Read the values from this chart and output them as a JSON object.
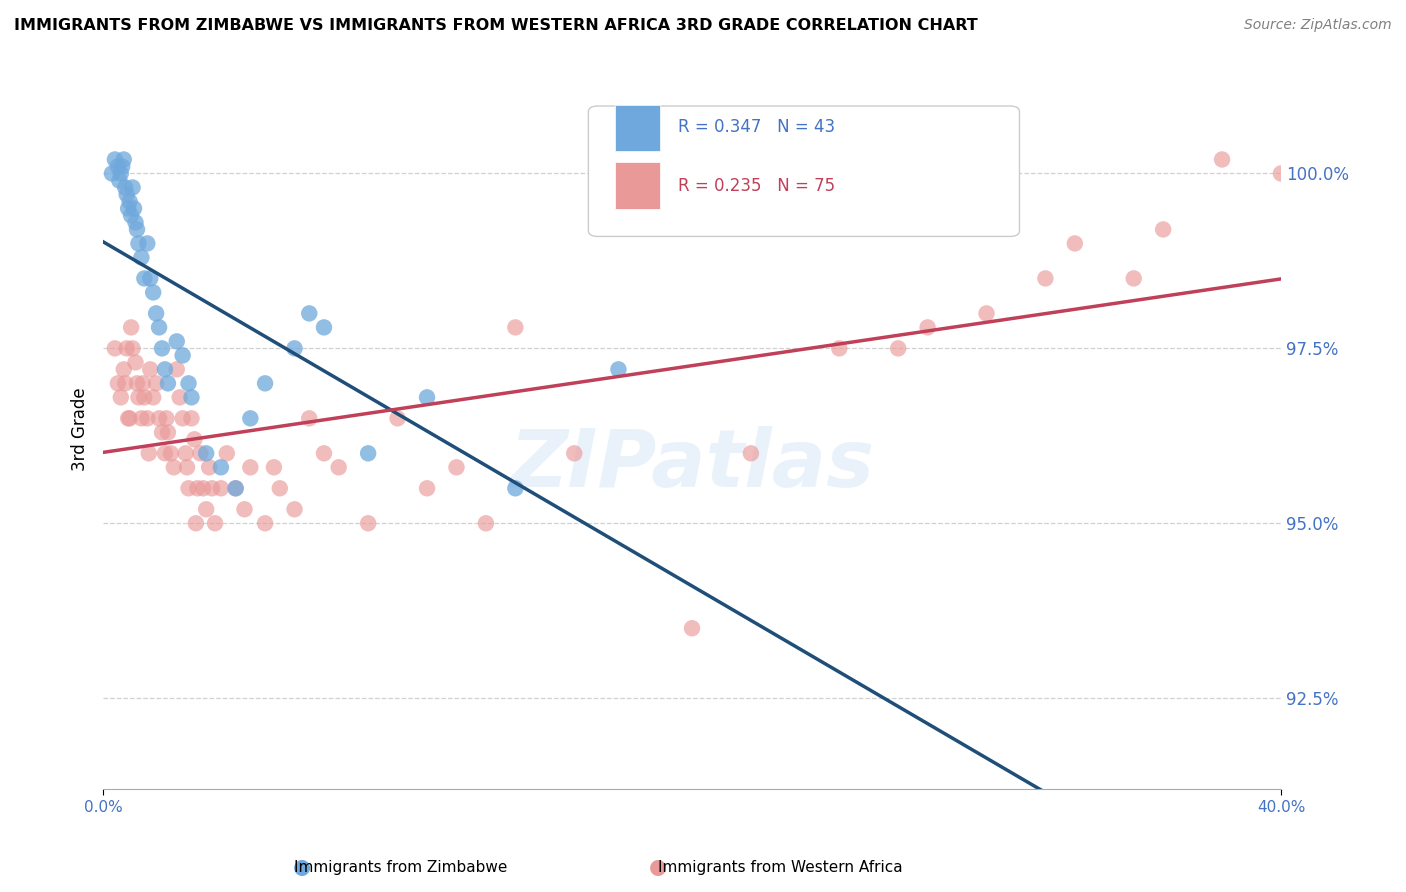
{
  "title": "IMMIGRANTS FROM ZIMBABWE VS IMMIGRANTS FROM WESTERN AFRICA 3RD GRADE CORRELATION CHART",
  "source": "Source: ZipAtlas.com",
  "ylabel": "3rd Grade",
  "xlim": [
    0.0,
    40.0
  ],
  "ylim": [
    91.2,
    101.5
  ],
  "yticks": [
    92.5,
    95.0,
    97.5,
    100.0
  ],
  "ytick_labels": [
    "92.5%",
    "95.0%",
    "97.5%",
    "100.0%"
  ],
  "legend_label_blue": "Immigrants from Zimbabwe",
  "legend_label_pink": "Immigrants from Western Africa",
  "blue_color": "#6fa8dc",
  "pink_color": "#ea9999",
  "blue_line_color": "#1f4e79",
  "pink_line_color": "#c0405a",
  "watermark": "ZIPatlas",
  "background_color": "#ffffff",
  "grid_color": "#cccccc",
  "blue_x": [
    0.3,
    0.4,
    0.5,
    0.55,
    0.6,
    0.65,
    0.7,
    0.75,
    0.8,
    0.85,
    0.9,
    0.95,
    1.0,
    1.05,
    1.1,
    1.15,
    1.2,
    1.3,
    1.4,
    1.5,
    1.6,
    1.7,
    1.8,
    1.9,
    2.0,
    2.1,
    2.2,
    2.5,
    2.7,
    2.9,
    3.0,
    3.5,
    4.0,
    4.5,
    5.0,
    5.5,
    6.5,
    7.0,
    7.5,
    9.0,
    11.0,
    14.0,
    17.5
  ],
  "blue_y": [
    100.0,
    100.2,
    100.1,
    99.9,
    100.0,
    100.1,
    100.2,
    99.8,
    99.7,
    99.5,
    99.6,
    99.4,
    99.8,
    99.5,
    99.3,
    99.2,
    99.0,
    98.8,
    98.5,
    99.0,
    98.5,
    98.3,
    98.0,
    97.8,
    97.5,
    97.2,
    97.0,
    97.6,
    97.4,
    97.0,
    96.8,
    96.0,
    95.8,
    95.5,
    96.5,
    97.0,
    97.5,
    98.0,
    97.8,
    96.0,
    96.8,
    95.5,
    97.2
  ],
  "pink_x": [
    0.4,
    0.5,
    0.6,
    0.7,
    0.75,
    0.8,
    0.85,
    0.9,
    0.95,
    1.0,
    1.1,
    1.15,
    1.2,
    1.3,
    1.35,
    1.4,
    1.5,
    1.55,
    1.6,
    1.7,
    1.8,
    1.9,
    2.0,
    2.1,
    2.15,
    2.2,
    2.3,
    2.4,
    2.5,
    2.6,
    2.7,
    2.8,
    2.85,
    2.9,
    3.0,
    3.1,
    3.15,
    3.2,
    3.3,
    3.4,
    3.5,
    3.6,
    3.7,
    3.8,
    4.0,
    4.2,
    4.5,
    4.8,
    5.0,
    5.5,
    5.8,
    6.0,
    6.5,
    7.0,
    7.5,
    8.0,
    9.0,
    10.0,
    11.0,
    12.0,
    13.0,
    14.0,
    16.0,
    20.0,
    22.0,
    25.0,
    27.0,
    28.0,
    30.0,
    32.0,
    33.0,
    35.0,
    36.0,
    38.0,
    40.0
  ],
  "pink_y": [
    97.5,
    97.0,
    96.8,
    97.2,
    97.0,
    97.5,
    96.5,
    96.5,
    97.8,
    97.5,
    97.3,
    97.0,
    96.8,
    96.5,
    97.0,
    96.8,
    96.5,
    96.0,
    97.2,
    96.8,
    97.0,
    96.5,
    96.3,
    96.0,
    96.5,
    96.3,
    96.0,
    95.8,
    97.2,
    96.8,
    96.5,
    96.0,
    95.8,
    95.5,
    96.5,
    96.2,
    95.0,
    95.5,
    96.0,
    95.5,
    95.2,
    95.8,
    95.5,
    95.0,
    95.5,
    96.0,
    95.5,
    95.2,
    95.8,
    95.0,
    95.8,
    95.5,
    95.2,
    96.5,
    96.0,
    95.8,
    95.0,
    96.5,
    95.5,
    95.8,
    95.0,
    97.8,
    96.0,
    93.5,
    96.0,
    97.5,
    97.5,
    97.8,
    98.0,
    98.5,
    99.0,
    98.5,
    99.2,
    100.2,
    100.0
  ]
}
